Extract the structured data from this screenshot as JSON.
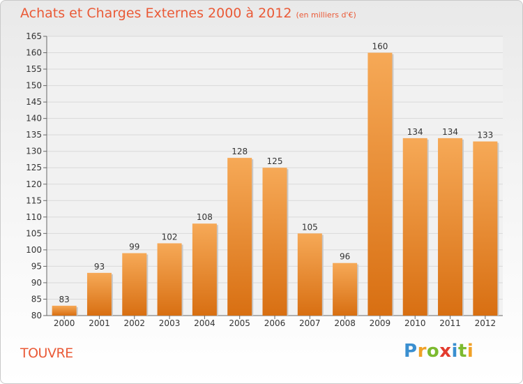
{
  "title": "Achats et Charges Externes 2000 à 2012",
  "unit_note": "(en milliers d'€)",
  "commune": "TOUVRE",
  "logo": {
    "letters": [
      "P",
      "r",
      "o",
      "x",
      "i",
      "t",
      "i"
    ],
    "colors": [
      "#3a8fd0",
      "#f0a127",
      "#7cba2f",
      "#e33b2e",
      "#3a8fd0",
      "#7cba2f",
      "#f0a127"
    ]
  },
  "colors": {
    "accent": "#ea5a37",
    "bar_top": "#f6a957",
    "bar_bottom": "#d86f12"
  },
  "chart_data": {
    "type": "bar",
    "categories": [
      "2000",
      "2001",
      "2002",
      "2003",
      "2004",
      "2005",
      "2006",
      "2007",
      "2008",
      "2009",
      "2010",
      "2011",
      "2012"
    ],
    "values": [
      83,
      93,
      99,
      102,
      108,
      128,
      125,
      105,
      96,
      160,
      134,
      134,
      133
    ],
    "data_labels": [
      "83",
      "93",
      "99",
      "102",
      "108",
      "128",
      "125",
      "105",
      "96",
      "160",
      "134",
      "134",
      "133"
    ],
    "ylim": [
      80,
      165
    ],
    "yticks": [
      80,
      85,
      90,
      95,
      100,
      105,
      110,
      115,
      120,
      125,
      130,
      135,
      140,
      145,
      150,
      155,
      160,
      165
    ],
    "grid": true,
    "xlabel": "",
    "ylabel": ""
  }
}
